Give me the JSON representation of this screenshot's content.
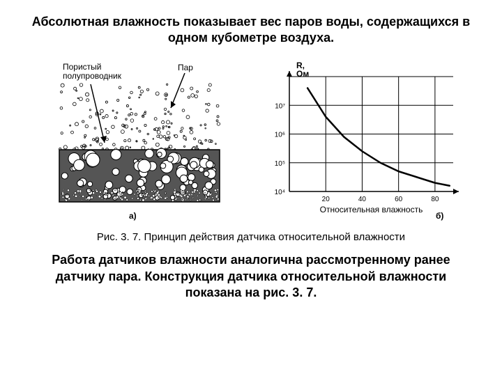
{
  "title": "Абсолютная влажность показывает вес паров воды, содержащихся в одном кубометре воздуха.",
  "figure_a": {
    "labels": {
      "semiconductor": "Пористый\nполупроводник",
      "vapor": "Пар"
    },
    "sublabel": "а)",
    "colors": {
      "stroke": "#000000",
      "fill_dark": "#333333",
      "fill_mid": "#888888"
    }
  },
  "figure_b": {
    "type": "line",
    "sublabel": "б)",
    "ylabel": "R, Ом",
    "xlabel": "Относительная влажность",
    "xlim": [
      0,
      90
    ],
    "ylim_log": [
      4,
      8
    ],
    "xticks": [
      20,
      40,
      60,
      80
    ],
    "ytick_labels": [
      "10⁴",
      "10⁵",
      "10⁶",
      "10⁷"
    ],
    "curve": [
      {
        "x": 10,
        "y": 7.6
      },
      {
        "x": 20,
        "y": 6.6
      },
      {
        "x": 30,
        "y": 5.9
      },
      {
        "x": 40,
        "y": 5.4
      },
      {
        "x": 50,
        "y": 5.0
      },
      {
        "x": 60,
        "y": 4.7
      },
      {
        "x": 70,
        "y": 4.5
      },
      {
        "x": 80,
        "y": 4.3
      },
      {
        "x": 88,
        "y": 4.2
      }
    ],
    "colors": {
      "axis": "#000000",
      "grid": "#000000",
      "curve": "#000000",
      "background": "#ffffff"
    },
    "label_fontsize": 12,
    "tick_fontsize": 10,
    "line_width": 2.5,
    "grid_width": 1
  },
  "caption": "Рис. 3. 7. Принцип действия датчика относительной влажности",
  "body": "Работа датчиков влажности аналогична рассмотренному ранее датчику пара. Конструкция датчика относительной влажности показана на рис. 3. 7."
}
